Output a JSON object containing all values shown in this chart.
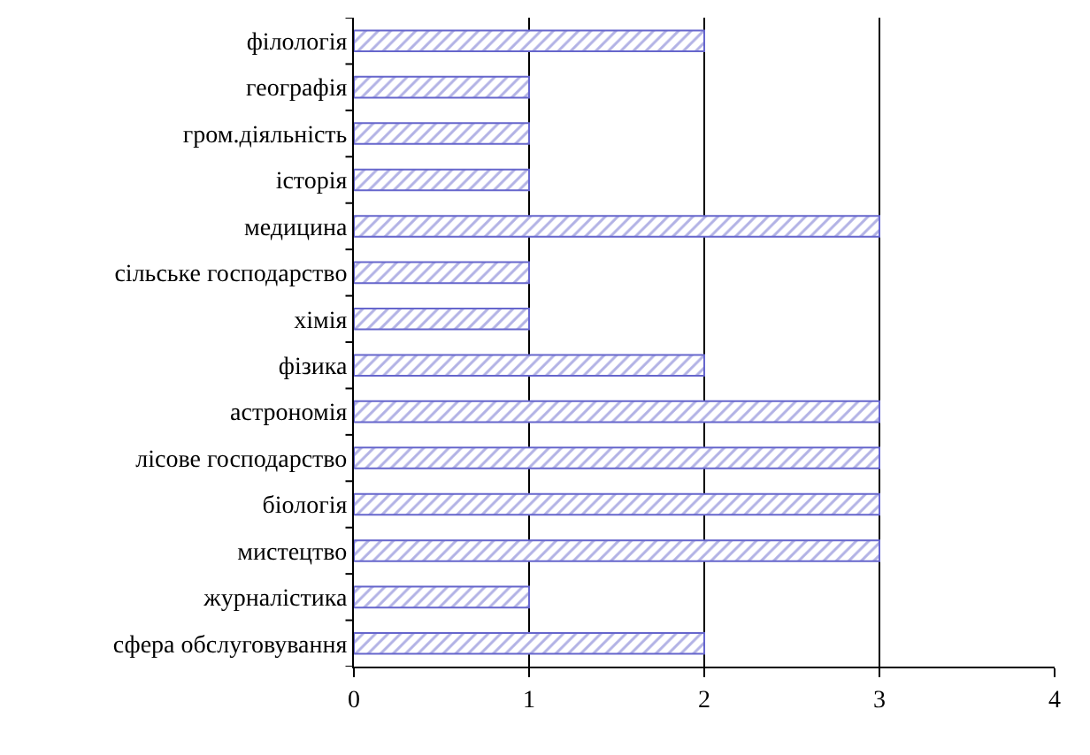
{
  "chart_data": {
    "type": "bar",
    "orientation": "horizontal",
    "categories": [
      "філологія",
      "географія",
      "гром.діяльність",
      "історія",
      "медицина",
      "сільське господарство",
      "хімія",
      "фізика",
      "астрономія",
      "лісове господарство",
      "біологія",
      "мистецтво",
      "журналістика",
      "сфера обслуговування"
    ],
    "values": [
      2,
      1,
      1,
      1,
      3,
      1,
      1,
      2,
      3,
      3,
      3,
      3,
      1,
      2
    ],
    "color": "#6666cc",
    "xlim": [
      0,
      4
    ],
    "xticks": [
      0,
      1,
      2,
      3,
      4
    ],
    "grid": "x"
  }
}
